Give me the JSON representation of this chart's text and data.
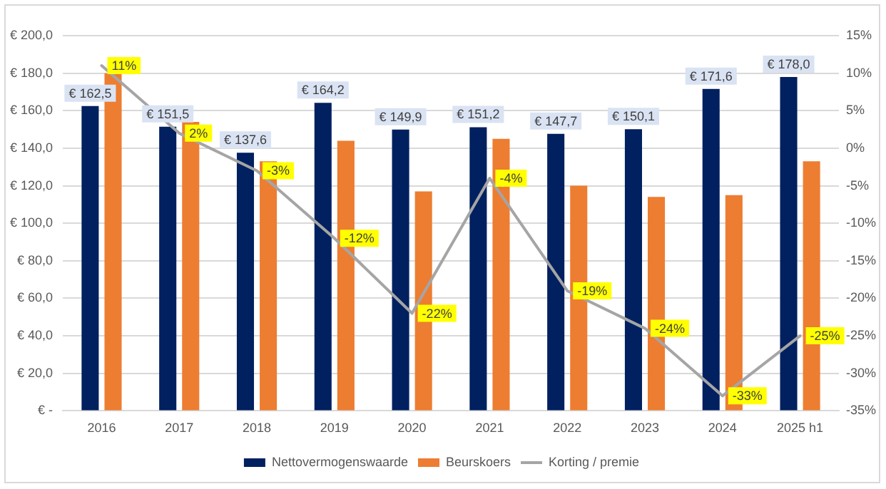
{
  "chart_data": {
    "type": "bar",
    "categories": [
      "2016",
      "2017",
      "2018",
      "2019",
      "2020",
      "2021",
      "2022",
      "2023",
      "2024",
      "2025 h1"
    ],
    "series": [
      {
        "name": "Nettovermogenswaarde",
        "color": "#002060",
        "values": [
          162.5,
          151.5,
          137.6,
          164.2,
          149.9,
          151.2,
          147.7,
          150.1,
          171.6,
          178.0
        ],
        "value_labels": [
          "€ 162,5",
          "€ 151,5",
          "€ 137,6",
          "€ 164,2",
          "€ 149,9",
          "€ 151,2",
          "€ 147,7",
          "€ 150,1",
          "€ 171,6",
          "€ 178,0"
        ]
      },
      {
        "name": "Beurskoers",
        "color": "#ed7d31",
        "values": [
          180,
          154,
          133,
          144,
          117,
          145,
          120,
          114,
          115,
          133
        ]
      },
      {
        "name": "Korting / premie",
        "type": "line",
        "axis": "y2",
        "color": "#a5a5a5",
        "values": [
          11,
          2,
          -3,
          -12,
          -22,
          -4,
          -19,
          -24,
          -33,
          -25
        ],
        "value_labels": [
          "11%",
          "2%",
          "-3%",
          "-12%",
          "-22%",
          "-4%",
          "-19%",
          "-24%",
          "-33%",
          "-25%"
        ]
      }
    ],
    "ylim": [
      0,
      200
    ],
    "yticks": [
      {
        "value": 0,
        "label": "€ -"
      },
      {
        "value": 20,
        "label": "€ 20,0"
      },
      {
        "value": 40,
        "label": "€ 40,0"
      },
      {
        "value": 60,
        "label": "€ 60,0"
      },
      {
        "value": 80,
        "label": "€ 80,0"
      },
      {
        "value": 100,
        "label": "€ 100,0"
      },
      {
        "value": 120,
        "label": "€ 120,0"
      },
      {
        "value": 140,
        "label": "€ 140,0"
      },
      {
        "value": 160,
        "label": "€ 160,0"
      },
      {
        "value": 180,
        "label": "€ 180,0"
      },
      {
        "value": 200,
        "label": "€ 200,0"
      }
    ],
    "y2lim": [
      -35,
      15
    ],
    "y2ticks": [
      {
        "value": -35,
        "label": "-35%"
      },
      {
        "value": -30,
        "label": "-30%"
      },
      {
        "value": -25,
        "label": "-25%"
      },
      {
        "value": -20,
        "label": "-20%"
      },
      {
        "value": -15,
        "label": "-15%"
      },
      {
        "value": -10,
        "label": "-10%"
      },
      {
        "value": -5,
        "label": "-5%"
      },
      {
        "value": 0,
        "label": "0%"
      },
      {
        "value": 5,
        "label": "5%"
      },
      {
        "value": 10,
        "label": "10%"
      },
      {
        "value": 15,
        "label": "15%"
      }
    ],
    "grid": "y",
    "legend": "bottom",
    "marker": "none",
    "line_style": "solid"
  }
}
